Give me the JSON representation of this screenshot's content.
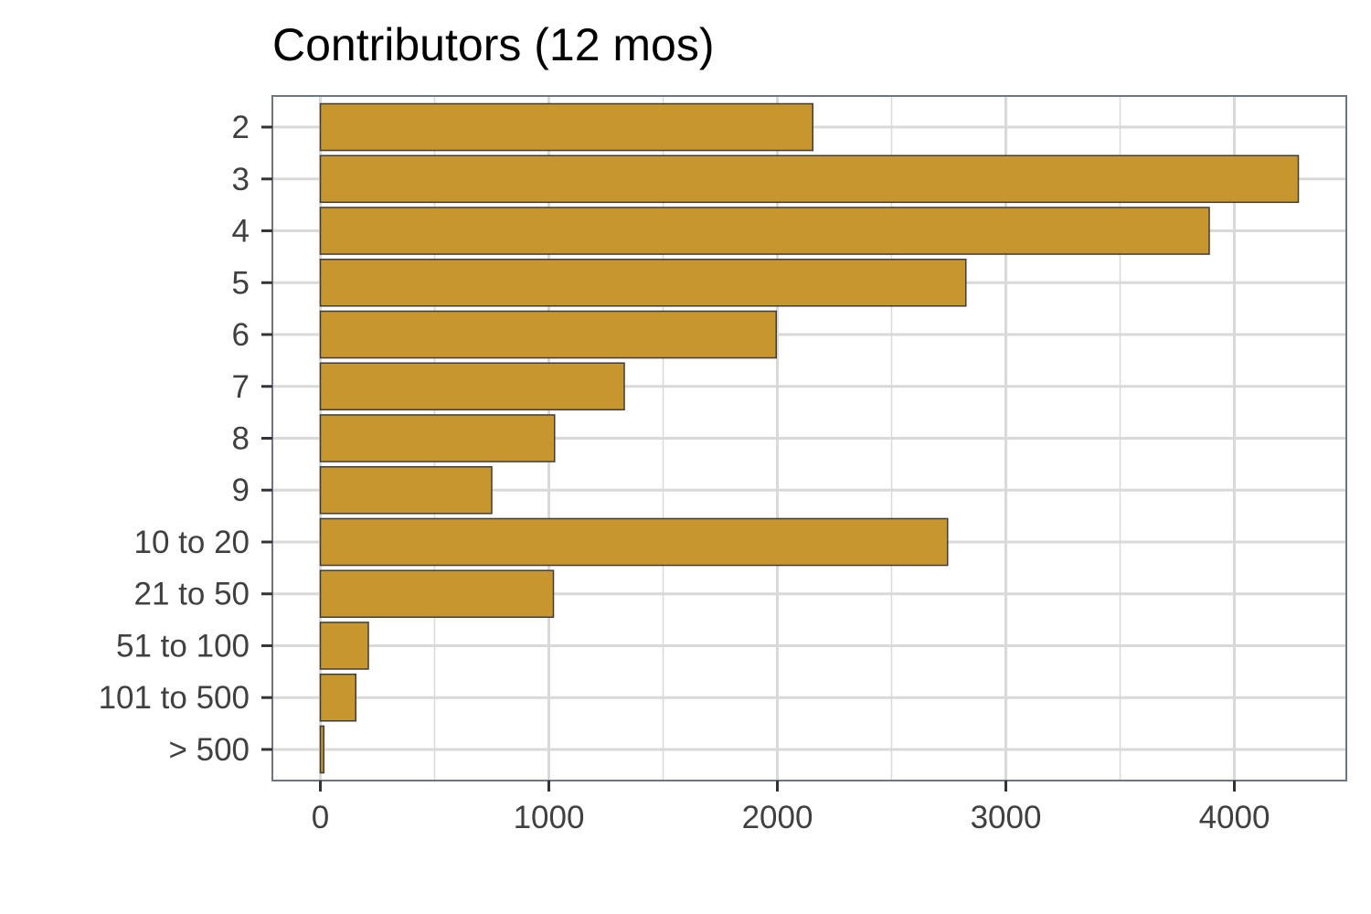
{
  "chart_data": {
    "type": "bar",
    "orientation": "horizontal",
    "title": "Contributors (12 mos)",
    "xlabel": "",
    "ylabel": "",
    "categories": [
      "2",
      "3",
      "4",
      "5",
      "6",
      "7",
      "8",
      "9",
      "10 to 20",
      "21 to 50",
      "51 to 100",
      "101 to 500",
      "> 500"
    ],
    "values": [
      2155,
      4280,
      3890,
      2825,
      1995,
      1330,
      1025,
      750,
      2745,
      1020,
      210,
      155,
      15
    ],
    "xlim": [
      -210,
      4490
    ],
    "x_ticks": [
      0,
      1000,
      2000,
      3000,
      4000
    ],
    "x_tick_labels": [
      "0",
      "1000",
      "2000",
      "3000",
      "4000"
    ],
    "grid": true,
    "legend": "none",
    "colors": {
      "bar_fill": "#c8962f",
      "bar_stroke": "#3d3d3d",
      "grid": "#d9d9d9",
      "panel_border": "#6b7785",
      "tick_text": "#404040",
      "title_text": "#000000"
    }
  }
}
